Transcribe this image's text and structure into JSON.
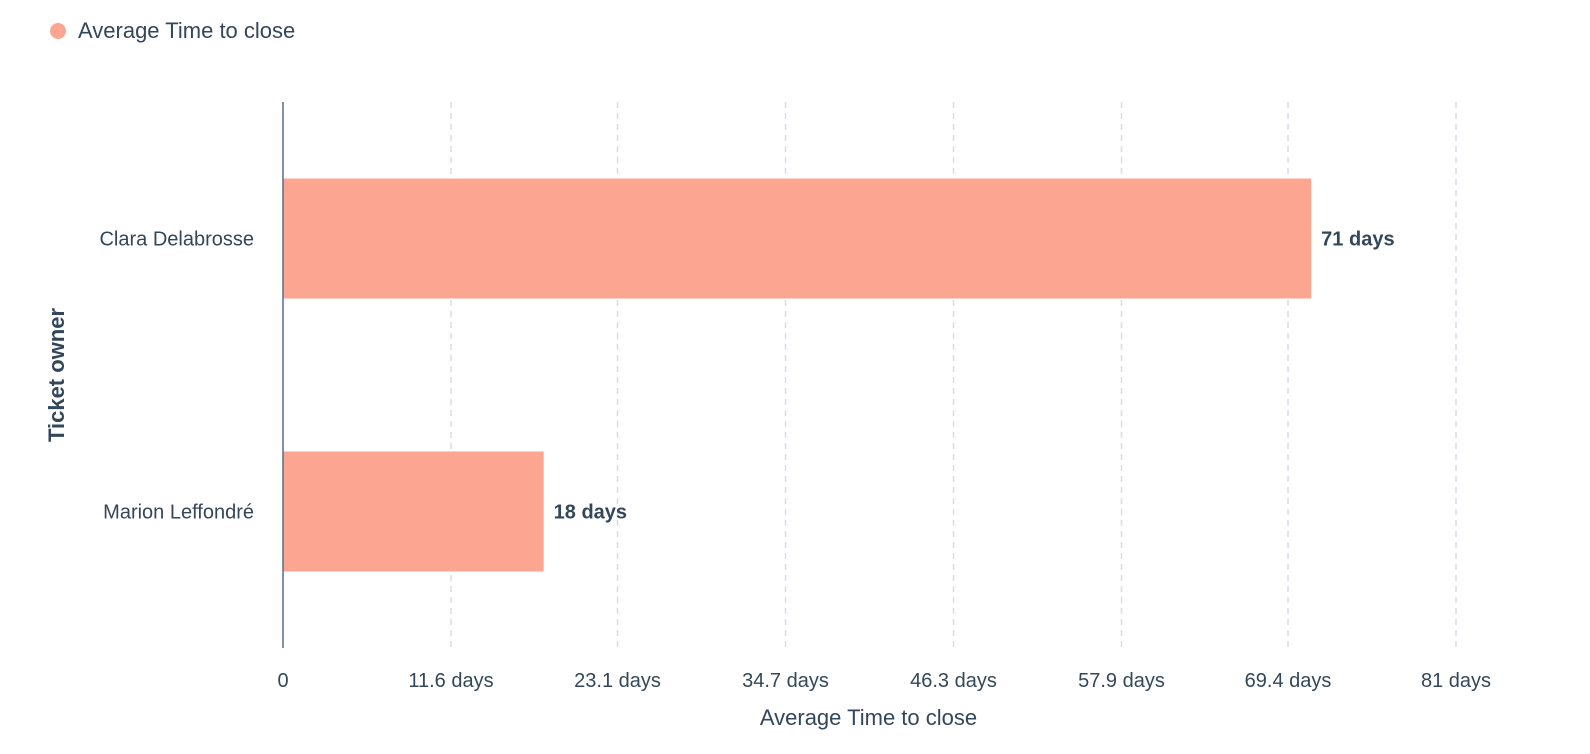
{
  "colors": {
    "bar": "#fca590",
    "text": "#33475b",
    "grid": "#d8dce8",
    "axis": "#5b6b8a"
  },
  "legend": {
    "label": "Average Time to close"
  },
  "chart_data": {
    "type": "bar",
    "orientation": "horizontal",
    "categories": [
      "Clara Delabrosse",
      "Marion Leffondré"
    ],
    "series": [
      {
        "name": "Average Time to close",
        "values": [
          71,
          18
        ],
        "data_labels": [
          "71 days",
          "18 days"
        ]
      }
    ],
    "xlabel": "Average Time to close",
    "ylabel": "Ticket owner",
    "xlim": [
      0,
      81
    ],
    "x_ticks": [
      0,
      11.6,
      23.1,
      34.7,
      46.3,
      57.9,
      69.4,
      81
    ],
    "x_tick_labels": [
      "0",
      "11.6 days",
      "23.1 days",
      "34.7 days",
      "46.3 days",
      "57.9 days",
      "69.4 days",
      "81 days"
    ],
    "grid": true,
    "legend_position": "top-left"
  }
}
